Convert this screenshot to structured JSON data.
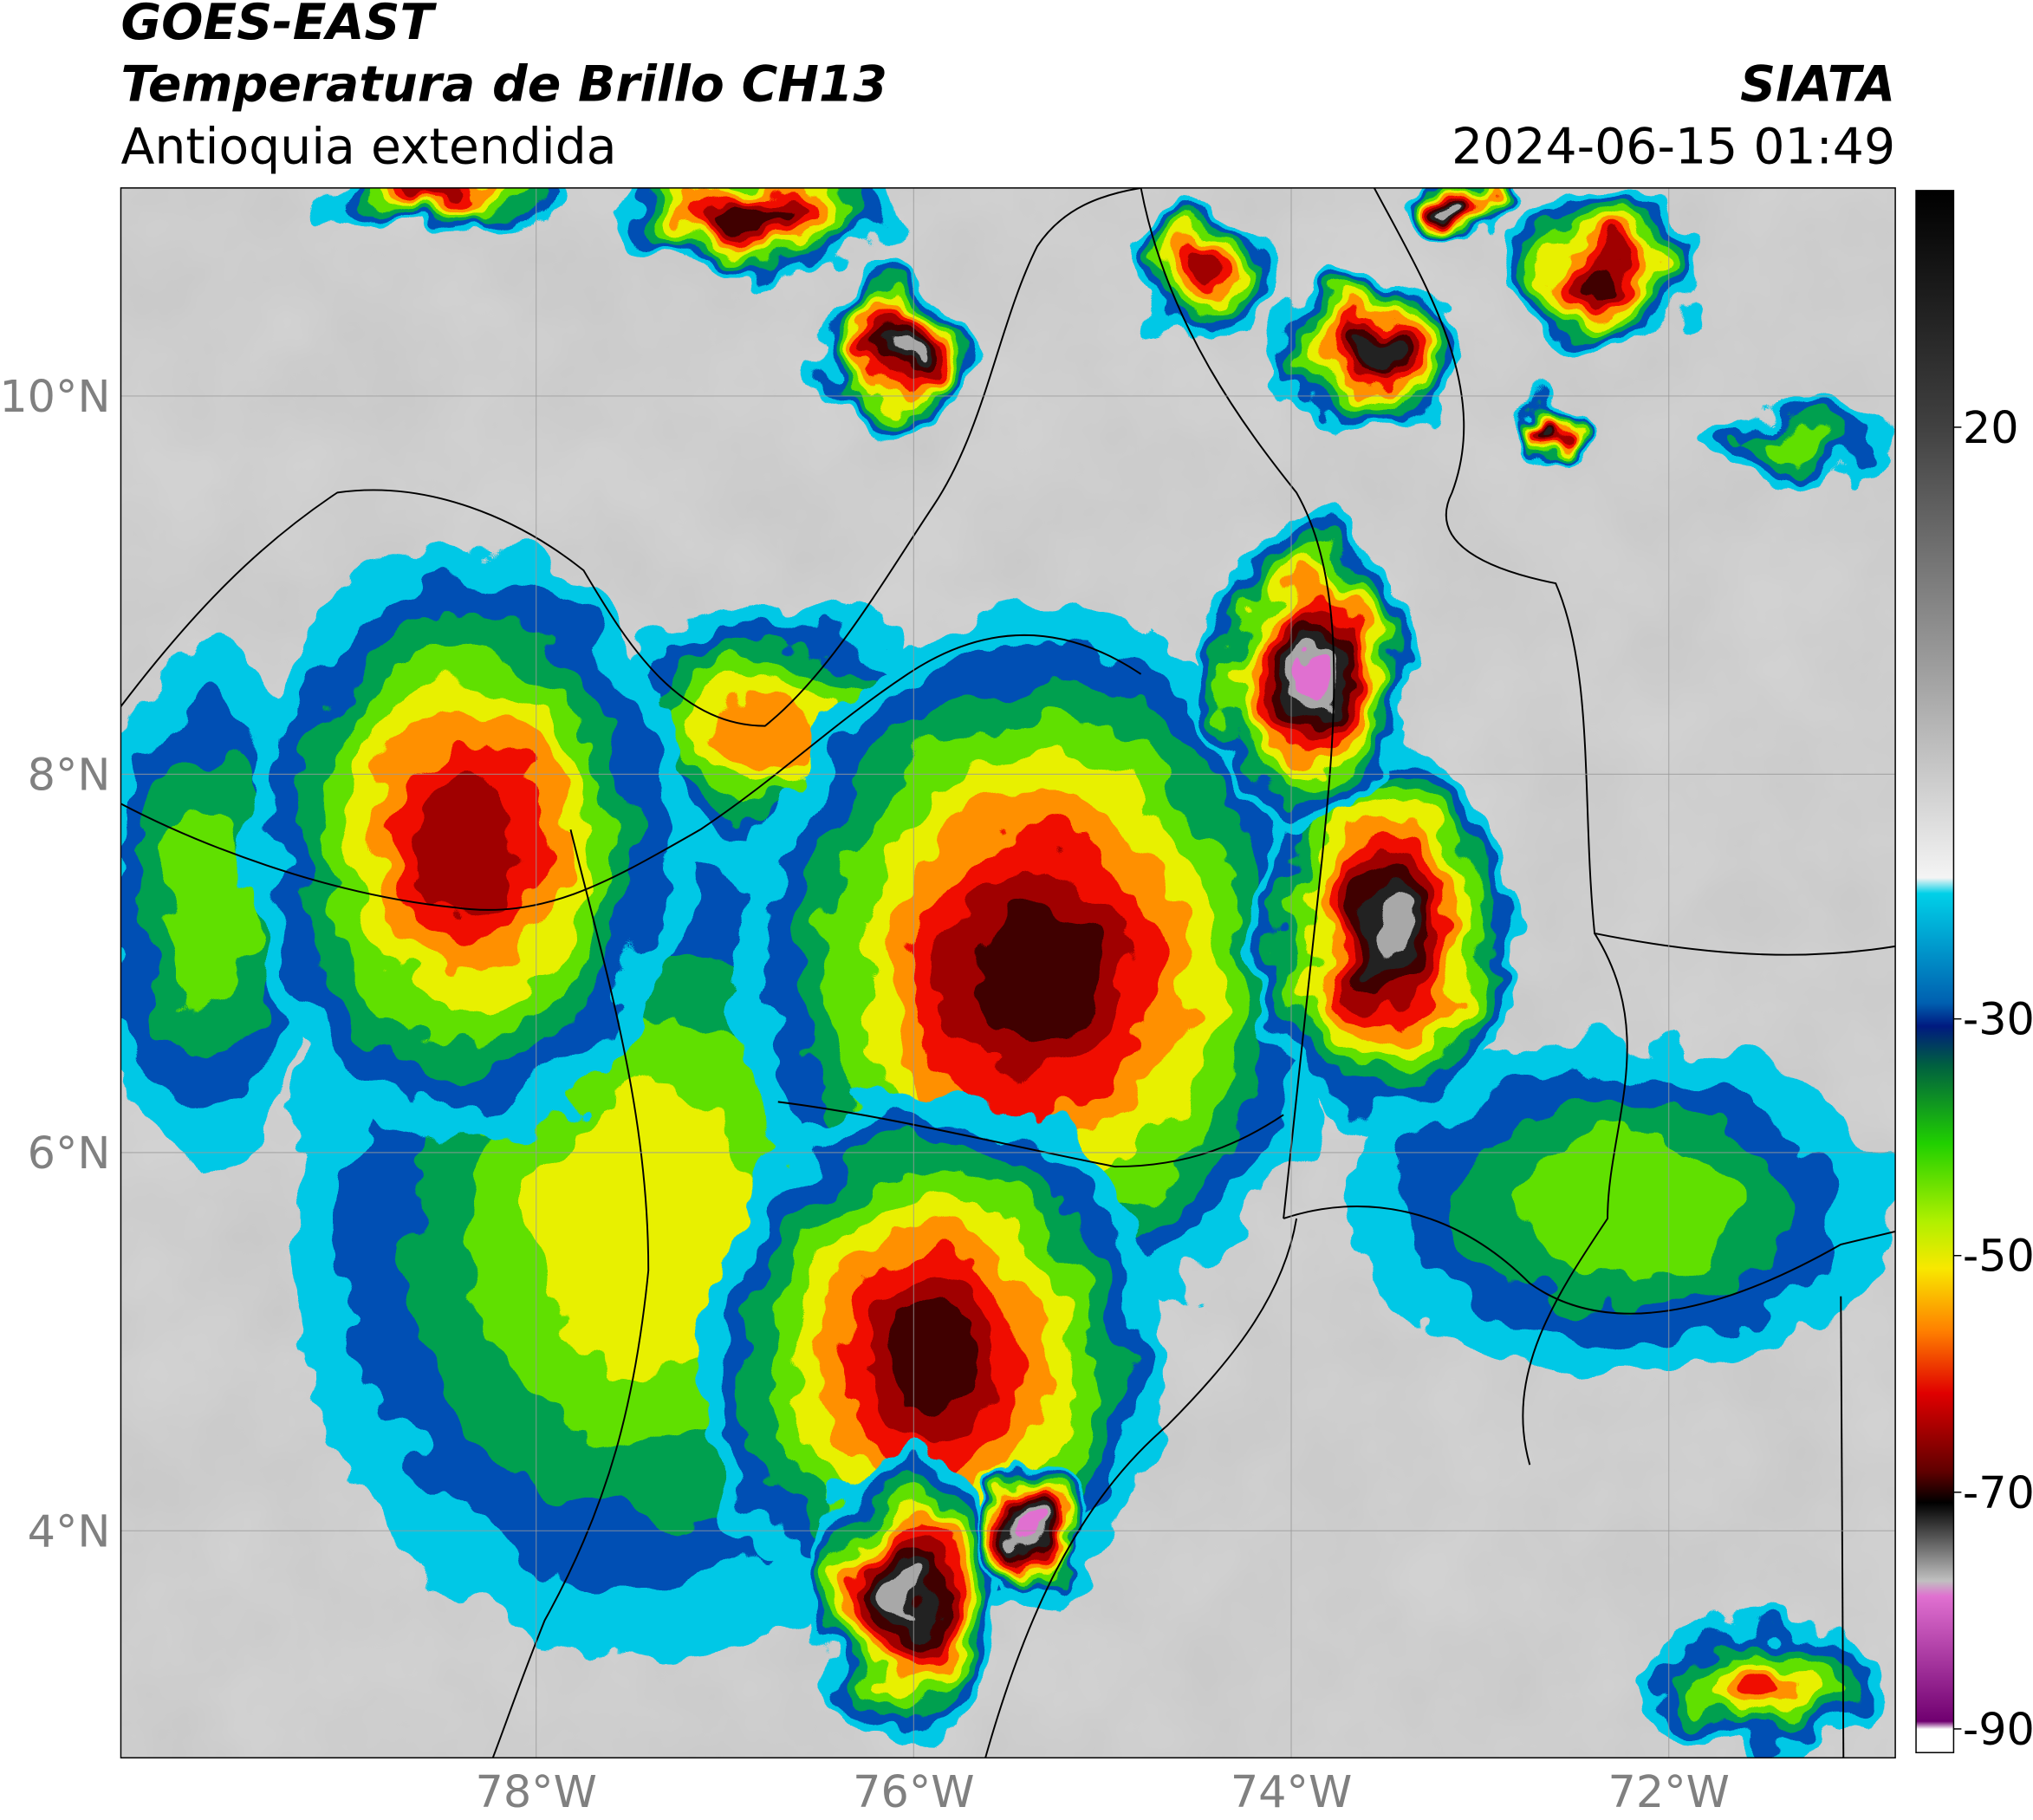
{
  "map": {
    "title": "GOES-EAST",
    "subtitle": "Temperatura de Brillo CH13",
    "region": "Antioquia extendida",
    "source": "SIATA",
    "datetime": "2024-06-15 01:49",
    "xlim": [
      -80.2,
      -70.8
    ],
    "ylim": [
      2.8,
      11.1
    ],
    "xticks": [
      {
        "value": -78,
        "label": "78°W"
      },
      {
        "value": -76,
        "label": "76°W"
      },
      {
        "value": -74,
        "label": "74°W"
      },
      {
        "value": -72,
        "label": "72°W"
      }
    ],
    "yticks": [
      {
        "value": 4,
        "label": "4°N"
      },
      {
        "value": 6,
        "label": "6°N"
      },
      {
        "value": 8,
        "label": "8°N"
      },
      {
        "value": 10,
        "label": "10°N"
      }
    ],
    "grid": true,
    "colorbar": {
      "lim": [
        -92,
        40
      ],
      "ticks": [
        20,
        -30,
        -50,
        -70,
        -90
      ]
    }
  }
}
